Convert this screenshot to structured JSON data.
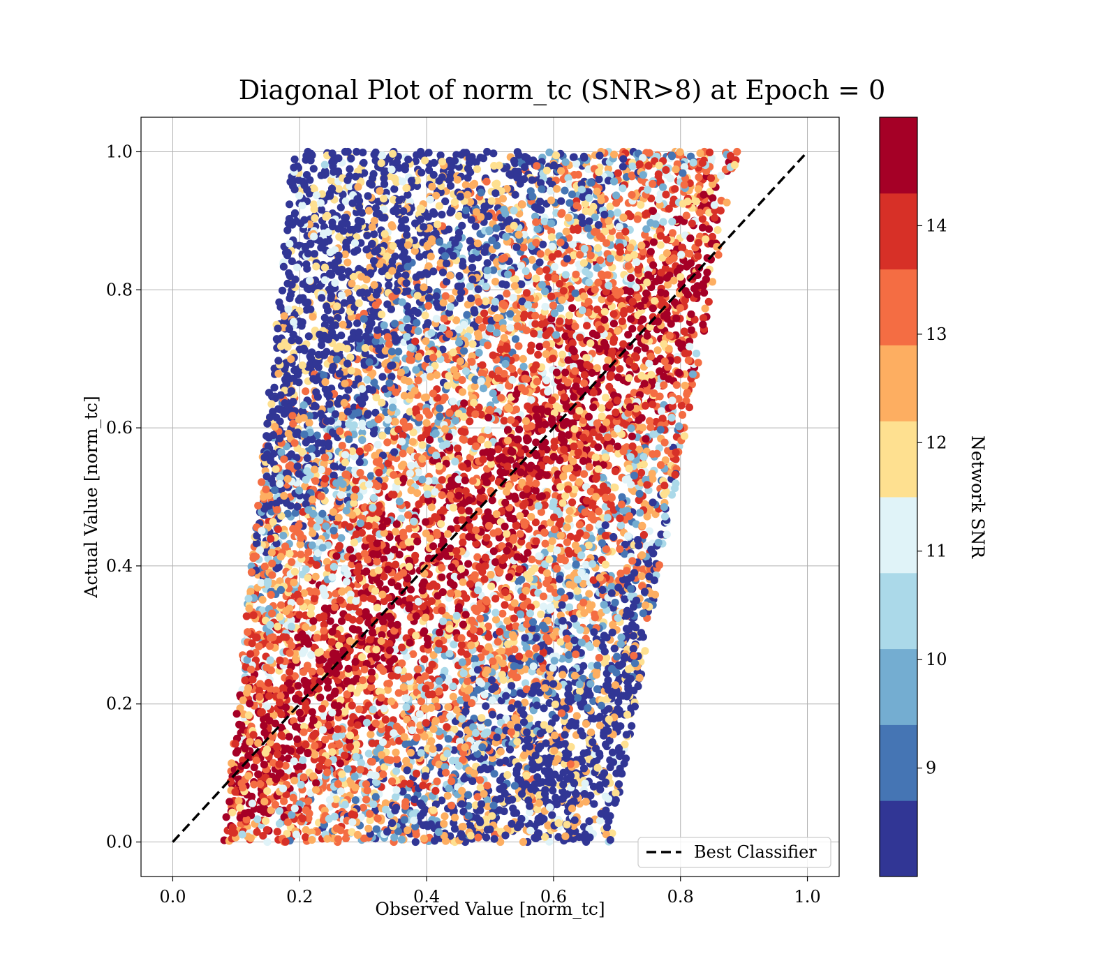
{
  "chart_data": {
    "type": "scatter",
    "title": "Diagonal Plot of norm_tc (SNR>8) at Epoch = 0",
    "xlabel": "Observed Value [norm_tc]",
    "ylabel": "Actual Value [norm_tc]",
    "xlim": [
      -0.05,
      1.05
    ],
    "ylim": [
      -0.05,
      1.05
    ],
    "x_ticks": [
      "0.0",
      "0.2",
      "0.4",
      "0.6",
      "0.8",
      "1.0"
    ],
    "y_ticks": [
      "0.0",
      "0.2",
      "0.4",
      "0.6",
      "0.8",
      "1.0"
    ],
    "grid": true,
    "legend": {
      "position": "lower-right",
      "entries": [
        "Best Classifier"
      ]
    },
    "reference_line": {
      "name": "Best Classifier",
      "x": [
        0.0,
        1.0
      ],
      "y": [
        0.0,
        1.0
      ],
      "style": "dashed",
      "color": "#000000"
    },
    "point_cloud": {
      "description_of_shape": "dense parallelogram band",
      "corners": [
        [
          0.08,
          0.0
        ],
        [
          0.69,
          0.0
        ],
        [
          0.89,
          1.0
        ],
        [
          0.19,
          1.0
        ]
      ],
      "approx_point_count": 9000,
      "color_by": "Network SNR"
    },
    "colorbar": {
      "label": "Network SNR",
      "range": [
        8.0,
        15.0
      ],
      "ticks": [
        "9",
        "10",
        "11",
        "12",
        "13",
        "14"
      ],
      "colors": [
        "#313695",
        "#4575b4",
        "#74add1",
        "#abd9e9",
        "#e0f3f8",
        "#fee090",
        "#fdae61",
        "#f46d43",
        "#d73027",
        "#a50026"
      ]
    }
  }
}
